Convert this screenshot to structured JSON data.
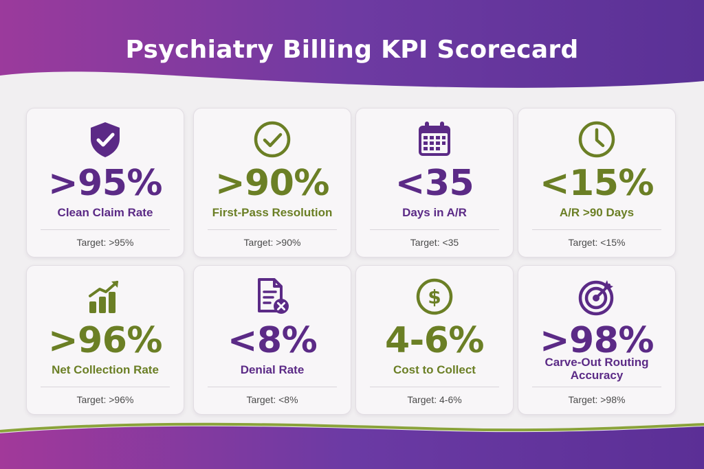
{
  "title": "Psychiatry Billing KPI Scorecard",
  "colors": {
    "purple": "#5b2a86",
    "green": "#6b7f25",
    "banner": "#7a3fa6"
  },
  "cards": [
    {
      "icon": "shield-check-icon",
      "value": ">95%",
      "label": "Clean Claim Rate",
      "target": "Target: >95%",
      "color": "purple"
    },
    {
      "icon": "check-circle-icon",
      "value": ">90%",
      "label": "First-Pass Resolution",
      "target": "Target: >90%",
      "color": "green"
    },
    {
      "icon": "calendar-icon",
      "value": "<35",
      "label": "Days in A/R",
      "target": "Target: <35",
      "color": "purple"
    },
    {
      "icon": "clock-icon",
      "value": "<15%",
      "label": "A/R >90 Days",
      "target": "Target: <15%",
      "color": "green"
    },
    {
      "icon": "growth-chart-icon",
      "value": ">96%",
      "label": "Net Collection Rate",
      "target": "Target: >96%",
      "color": "green"
    },
    {
      "icon": "document-x-icon",
      "value": "<8%",
      "label": "Denial Rate",
      "target": "Target: <8%",
      "color": "purple"
    },
    {
      "icon": "dollar-circle-icon",
      "value": "4-6%",
      "label": "Cost to Collect",
      "target": "Target: 4-6%",
      "color": "green"
    },
    {
      "icon": "target-icon",
      "value": ">98%",
      "label": "Carve-Out Routing Accuracy",
      "target": "Target: >98%",
      "color": "purple"
    }
  ]
}
